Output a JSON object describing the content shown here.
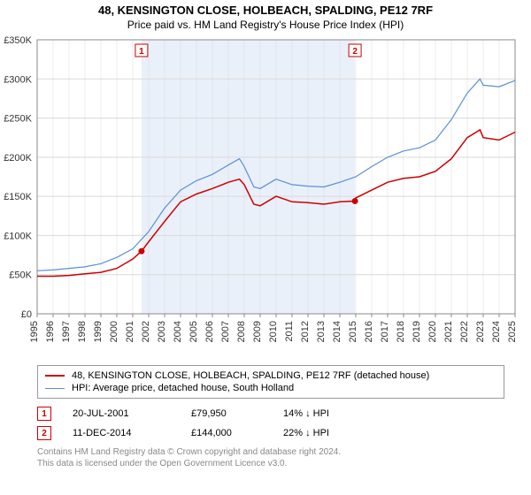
{
  "title_line1": "48, KENSINGTON CLOSE, HOLBEACH, SPALDING, PE12 7RF",
  "title_line2": "Price paid vs. HM Land Registry's House Price Index (HPI)",
  "chart": {
    "type": "line",
    "background_color": "#ffffff",
    "grid_color": "#d9d9d9",
    "shaded_band_color": "#eaf0fa",
    "xlim": [
      1995,
      2025
    ],
    "ylim": [
      0,
      350000
    ],
    "ytick_step": 50000,
    "y_prefix": "£",
    "y_suffix_k": "K",
    "xticks": [
      1995,
      1996,
      1997,
      1998,
      1999,
      2000,
      2001,
      2002,
      2003,
      2004,
      2005,
      2006,
      2007,
      2008,
      2009,
      2010,
      2011,
      2012,
      2013,
      2014,
      2015,
      2016,
      2017,
      2018,
      2019,
      2020,
      2021,
      2022,
      2023,
      2024,
      2025
    ],
    "shaded_band": {
      "x_from": 2001.55,
      "x_to": 2014.95
    },
    "series": [
      {
        "name": "property",
        "label": "48, KENSINGTON CLOSE, HOLBEACH, SPALDING, PE12 7RF (detached house)",
        "color": "#cc0000",
        "line_width": 1.5,
        "points": [
          [
            1995,
            48000
          ],
          [
            1996,
            48000
          ],
          [
            1997,
            49000
          ],
          [
            1998,
            51000
          ],
          [
            1999,
            53000
          ],
          [
            2000,
            58000
          ],
          [
            2001,
            70000
          ],
          [
            2001.55,
            79950
          ],
          [
            2002,
            92000
          ],
          [
            2003,
            118000
          ],
          [
            2004,
            143000
          ],
          [
            2005,
            153000
          ],
          [
            2006,
            160000
          ],
          [
            2007,
            168000
          ],
          [
            2007.7,
            172000
          ],
          [
            2008,
            165000
          ],
          [
            2008.6,
            140000
          ],
          [
            2009,
            138000
          ],
          [
            2010,
            150000
          ],
          [
            2011,
            143000
          ],
          [
            2012,
            142000
          ],
          [
            2013,
            140000
          ],
          [
            2014,
            143000
          ],
          [
            2014.95,
            144000
          ],
          [
            2015,
            148000
          ],
          [
            2016,
            158000
          ],
          [
            2017,
            168000
          ],
          [
            2018,
            173000
          ],
          [
            2019,
            175000
          ],
          [
            2020,
            182000
          ],
          [
            2021,
            198000
          ],
          [
            2022,
            225000
          ],
          [
            2022.8,
            235000
          ],
          [
            2023,
            225000
          ],
          [
            2024,
            222000
          ],
          [
            2025,
            232000
          ]
        ]
      },
      {
        "name": "hpi",
        "label": "HPI: Average price, detached house, South Holland",
        "color": "#5b8fd6",
        "line_width": 1.2,
        "points": [
          [
            1995,
            55000
          ],
          [
            1996,
            56000
          ],
          [
            1997,
            58000
          ],
          [
            1998,
            60000
          ],
          [
            1999,
            64000
          ],
          [
            2000,
            72000
          ],
          [
            2001,
            83000
          ],
          [
            2002,
            105000
          ],
          [
            2003,
            135000
          ],
          [
            2004,
            158000
          ],
          [
            2005,
            170000
          ],
          [
            2006,
            178000
          ],
          [
            2007,
            190000
          ],
          [
            2007.7,
            198000
          ],
          [
            2008,
            188000
          ],
          [
            2008.6,
            162000
          ],
          [
            2009,
            160000
          ],
          [
            2010,
            172000
          ],
          [
            2011,
            165000
          ],
          [
            2012,
            163000
          ],
          [
            2013,
            162000
          ],
          [
            2014,
            168000
          ],
          [
            2015,
            175000
          ],
          [
            2016,
            188000
          ],
          [
            2017,
            200000
          ],
          [
            2018,
            208000
          ],
          [
            2019,
            212000
          ],
          [
            2020,
            222000
          ],
          [
            2021,
            248000
          ],
          [
            2022,
            282000
          ],
          [
            2022.8,
            300000
          ],
          [
            2023,
            292000
          ],
          [
            2024,
            290000
          ],
          [
            2025,
            298000
          ]
        ]
      }
    ],
    "markers": [
      {
        "num": "1",
        "x": 2001.55,
        "y": 79950
      },
      {
        "num": "2",
        "x": 2014.95,
        "y": 144000
      }
    ],
    "marker_badge_color": "#cc0000",
    "axis_label_fontsize": 11
  },
  "legend": {
    "items": [
      {
        "color": "#cc0000",
        "width": 2,
        "label": "48, KENSINGTON CLOSE, HOLBEACH, SPALDING, PE12 7RF (detached house)"
      },
      {
        "color": "#5b8fd6",
        "width": 1.5,
        "label": "HPI: Average price, detached house, South Holland"
      }
    ]
  },
  "marker_rows": [
    {
      "num": "1",
      "date": "20-JUL-2001",
      "price": "£79,950",
      "pct": "14% ↓ HPI"
    },
    {
      "num": "2",
      "date": "11-DEC-2014",
      "price": "£144,000",
      "pct": "22% ↓ HPI"
    }
  ],
  "footer_line1": "Contains HM Land Registry data © Crown copyright and database right 2024.",
  "footer_line2": "This data is licensed under the Open Government Licence v3.0."
}
